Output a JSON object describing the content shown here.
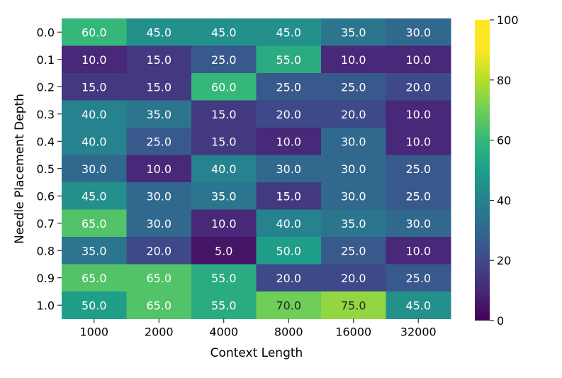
{
  "chart_data": {
    "type": "heatmap",
    "xlabel": "Context Length",
    "ylabel": "Needle Placement Depth",
    "x_categories": [
      "1000",
      "2000",
      "4000",
      "8000",
      "16000",
      "32000"
    ],
    "y_categories": [
      "0.0",
      "0.1",
      "0.2",
      "0.3",
      "0.4",
      "0.5",
      "0.6",
      "0.7",
      "0.8",
      "0.9",
      "1.0"
    ],
    "values": [
      [
        60,
        45,
        45,
        45,
        35,
        30
      ],
      [
        10,
        15,
        25,
        55,
        10,
        10
      ],
      [
        15,
        15,
        60,
        25,
        25,
        20
      ],
      [
        40,
        35,
        15,
        20,
        20,
        10
      ],
      [
        40,
        25,
        15,
        10,
        30,
        10
      ],
      [
        30,
        10,
        40,
        30,
        30,
        25
      ],
      [
        45,
        30,
        35,
        15,
        30,
        25
      ],
      [
        65,
        30,
        10,
        40,
        35,
        30
      ],
      [
        35,
        20,
        5,
        50,
        25,
        10
      ],
      [
        65,
        65,
        55,
        20,
        20,
        25
      ],
      [
        50,
        65,
        55,
        70,
        75,
        45
      ]
    ],
    "value_labels": [
      [
        "60.0",
        "45.0",
        "45.0",
        "45.0",
        "35.0",
        "30.0"
      ],
      [
        "10.0",
        "15.0",
        "25.0",
        "55.0",
        "10.0",
        "10.0"
      ],
      [
        "15.0",
        "15.0",
        "60.0",
        "25.0",
        "25.0",
        "20.0"
      ],
      [
        "40.0",
        "35.0",
        "15.0",
        "20.0",
        "20.0",
        "10.0"
      ],
      [
        "40.0",
        "25.0",
        "15.0",
        "10.0",
        "30.0",
        "10.0"
      ],
      [
        "30.0",
        "10.0",
        "40.0",
        "30.0",
        "30.0",
        "25.0"
      ],
      [
        "45.0",
        "30.0",
        "35.0",
        "15.0",
        "30.0",
        "25.0"
      ],
      [
        "65.0",
        "30.0",
        "10.0",
        "40.0",
        "35.0",
        "30.0"
      ],
      [
        "35.0",
        "20.0",
        "5.0",
        "50.0",
        "25.0",
        "10.0"
      ],
      [
        "65.0",
        "65.0",
        "55.0",
        "20.0",
        "20.0",
        "25.0"
      ],
      [
        "50.0",
        "65.0",
        "55.0",
        "70.0",
        "75.0",
        "45.0"
      ]
    ],
    "colormap": "viridis",
    "vmin": 0,
    "vmax": 100,
    "colorbar_ticks": [
      "0",
      "20",
      "40",
      "60",
      "80",
      "100"
    ],
    "grid": false,
    "legend": "colorbar-right"
  }
}
